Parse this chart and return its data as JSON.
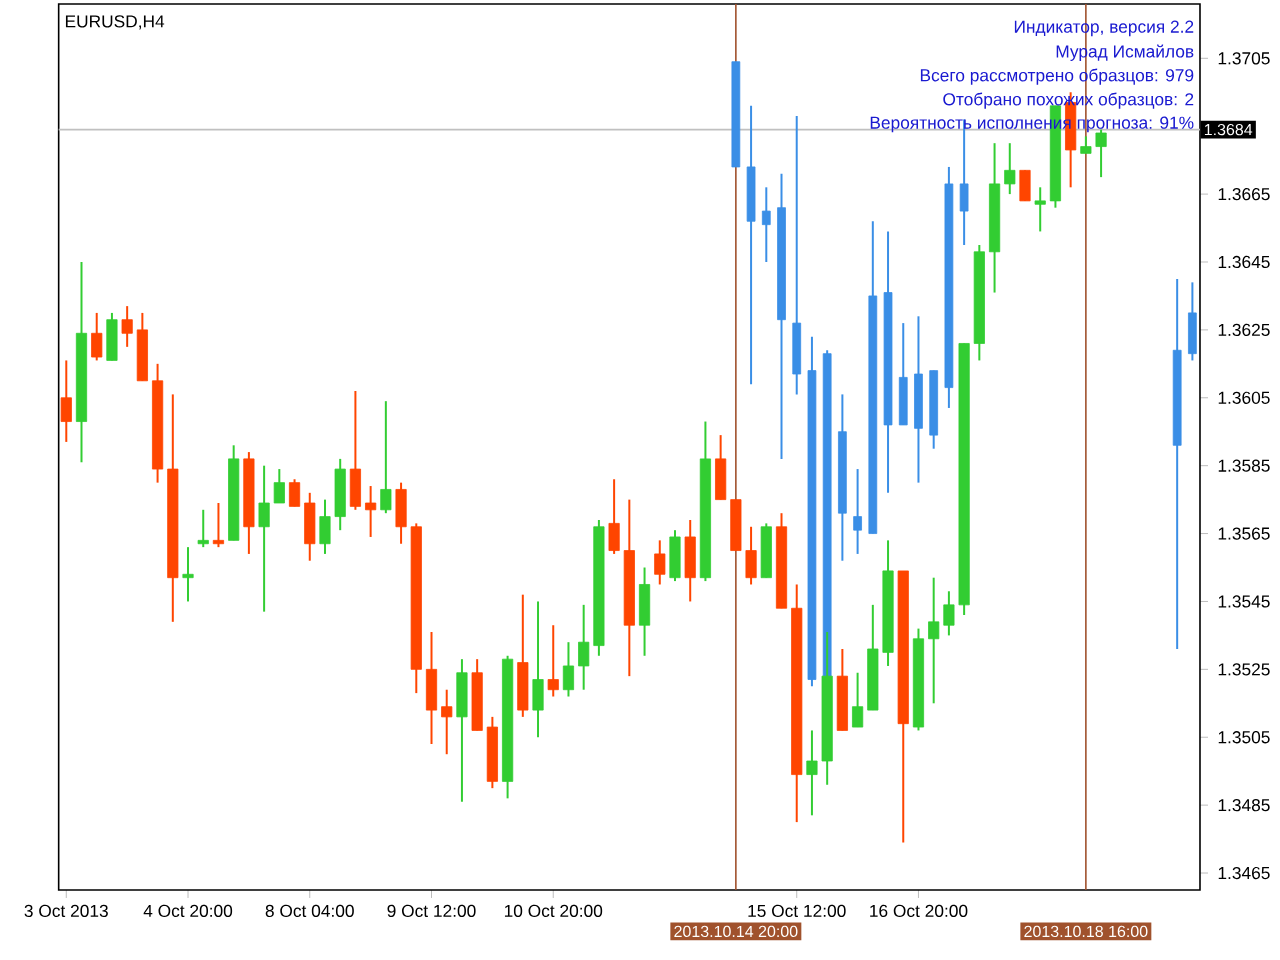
{
  "chart_data": {
    "type": "candlestick",
    "title": "EURUSD,H4",
    "annotations": [
      "Индикатор, версия 2.2",
      "Мурад Исмайлов",
      "Всего рассмотрено образцов: 979",
      "Отобрано похожих образцов: 2",
      "Вероятность исполнения прогноза: 91%"
    ],
    "categories": [
      "3 Oct 2013",
      null,
      null,
      null,
      null,
      null,
      null,
      null,
      "4 Oct 20:00",
      null,
      null,
      null,
      null,
      null,
      null,
      null,
      "8 Oct 04:00",
      null,
      null,
      null,
      null,
      null,
      null,
      null,
      "9 Oct 12:00",
      null,
      null,
      null,
      null,
      null,
      null,
      null,
      "10 Oct 20:00",
      null,
      null,
      null,
      null,
      null,
      null,
      null,
      null,
      null,
      null,
      null,
      "2013.10.14 20:00",
      null,
      null,
      null,
      "15 Oct 12:00",
      null,
      null,
      null,
      null,
      null,
      null,
      null,
      "16 Oct 20:00",
      null,
      null,
      null,
      null,
      null,
      null,
      null,
      null,
      null,
      null,
      "2013.10.18 16:00",
      null,
      null,
      null,
      null,
      null,
      null,
      null
    ],
    "series": [
      {
        "ohlc": [
          [
            1.3605,
            1.3616,
            1.3592,
            1.3598
          ],
          [
            1.3598,
            1.3645,
            1.3586,
            1.3624
          ],
          [
            1.3624,
            1.363,
            1.3616,
            1.3617
          ],
          [
            1.3616,
            1.363,
            1.3616,
            1.3628
          ],
          [
            1.3628,
            1.3632,
            1.362,
            1.3624
          ],
          [
            1.3625,
            1.363,
            1.361,
            1.361
          ],
          [
            1.361,
            1.3615,
            1.358,
            1.3584
          ],
          [
            1.3584,
            1.3606,
            1.3539,
            1.3552
          ],
          [
            1.3552,
            1.3561,
            1.3545,
            1.3553
          ],
          [
            1.3562,
            1.3572,
            1.3561,
            1.3563
          ],
          [
            1.3563,
            1.3574,
            1.3561,
            1.3562
          ],
          [
            1.3563,
            1.3591,
            1.3563,
            1.3587
          ],
          [
            1.3587,
            1.3589,
            1.3559,
            1.3567
          ],
          [
            1.3567,
            1.3585,
            1.3542,
            1.3574
          ],
          [
            1.3574,
            1.3584,
            1.3574,
            1.358
          ],
          [
            1.358,
            1.3581,
            1.3573,
            1.3573
          ],
          [
            1.3574,
            1.3577,
            1.3557,
            1.3562
          ],
          [
            1.3562,
            1.3575,
            1.3559,
            1.357
          ],
          [
            1.357,
            1.3587,
            1.3566,
            1.3584
          ],
          [
            1.3584,
            1.3607,
            1.3572,
            1.3573
          ],
          [
            1.3574,
            1.3579,
            1.3564,
            1.3572
          ],
          [
            1.3572,
            1.3604,
            1.3571,
            1.3578
          ],
          [
            1.3578,
            1.358,
            1.3562,
            1.3567
          ],
          [
            1.3567,
            1.3568,
            1.3518,
            1.3525
          ],
          [
            1.3525,
            1.3536,
            1.3503,
            1.3513
          ],
          [
            1.3514,
            1.3519,
            1.35,
            1.3511
          ],
          [
            1.3511,
            1.3528,
            1.3486,
            1.3524
          ],
          [
            1.3524,
            1.3528,
            1.3507,
            1.3507
          ],
          [
            1.3508,
            1.3511,
            1.349,
            1.3492
          ],
          [
            1.3492,
            1.3529,
            1.3487,
            1.3528
          ],
          [
            1.3527,
            1.3547,
            1.3511,
            1.3513
          ],
          [
            1.3513,
            1.3545,
            1.3505,
            1.3522
          ],
          [
            1.3522,
            1.3538,
            1.3517,
            1.3519
          ],
          [
            1.3519,
            1.3533,
            1.3517,
            1.3526
          ],
          [
            1.3526,
            1.3544,
            1.3519,
            1.3533
          ],
          [
            1.3532,
            1.3569,
            1.3529,
            1.3567
          ],
          [
            1.3568,
            1.3581,
            1.3559,
            1.356
          ],
          [
            1.356,
            1.3575,
            1.3523,
            1.3538
          ],
          [
            1.3538,
            1.3555,
            1.3529,
            1.355
          ],
          [
            1.3559,
            1.3563,
            1.355,
            1.3553
          ],
          [
            1.3552,
            1.3566,
            1.3551,
            1.3564
          ],
          [
            1.3564,
            1.3569,
            1.3545,
            1.3552
          ],
          [
            1.3552,
            1.3598,
            1.3551,
            1.3587
          ],
          [
            1.3587,
            1.3594,
            1.3575,
            1.3575
          ],
          [
            1.3575,
            1.3575,
            1.356,
            1.356
          ],
          [
            1.356,
            1.3567,
            1.355,
            1.3552
          ],
          [
            1.3552,
            1.3568,
            1.3552,
            1.3567
          ],
          [
            1.3567,
            1.3571,
            1.3543,
            1.3543
          ],
          [
            1.3543,
            1.355,
            1.348,
            1.3494
          ],
          [
            1.3494,
            1.3507,
            1.3482,
            1.3498
          ],
          [
            1.3498,
            1.3536,
            1.3491,
            1.3523
          ],
          [
            1.3523,
            1.3531,
            1.3507,
            1.3507
          ],
          [
            1.3508,
            1.3524,
            1.3508,
            1.3514
          ],
          [
            1.3513,
            1.3544,
            1.3513,
            1.3531
          ],
          [
            1.353,
            1.3563,
            1.3526,
            1.3554
          ],
          [
            1.3554,
            1.3554,
            1.3474,
            1.3509
          ],
          [
            1.3508,
            1.3537,
            1.3507,
            1.3534
          ],
          [
            1.3534,
            1.3552,
            1.3515,
            1.3539
          ],
          [
            1.3538,
            1.3548,
            1.3535,
            1.3544
          ],
          [
            1.3544,
            1.3621,
            1.3541,
            1.3621
          ],
          [
            1.3621,
            1.365,
            1.3616,
            1.3648
          ],
          [
            1.3648,
            1.368,
            1.3636,
            1.3668
          ],
          [
            1.3668,
            1.368,
            1.3665,
            1.3672
          ],
          [
            1.3672,
            1.3672,
            1.3663,
            1.3663
          ],
          [
            1.3662,
            1.3667,
            1.3654,
            1.3663
          ],
          [
            1.3663,
            1.3691,
            1.3661,
            1.3691
          ],
          [
            1.3692,
            1.3695,
            1.3667,
            1.3678
          ],
          [
            1.3677,
            1.3682,
            1.3677,
            1.3679
          ],
          [
            1.3679,
            1.3684,
            1.367,
            1.3683
          ],
          null,
          null,
          null,
          null,
          null,
          null
        ],
        "colors": [
          "#ff4500",
          "#32cd32",
          "#ff4500",
          "#32cd32",
          "#ff4500",
          "#ff4500",
          "#ff4500",
          "#ff4500",
          "#32cd32",
          "#32cd32",
          "#ff4500",
          "#32cd32",
          "#ff4500",
          "#32cd32",
          "#32cd32",
          "#ff4500",
          "#ff4500",
          "#32cd32",
          "#32cd32",
          "#ff4500",
          "#ff4500",
          "#32cd32",
          "#ff4500",
          "#ff4500",
          "#ff4500",
          "#ff4500",
          "#32cd32",
          "#ff4500",
          "#ff4500",
          "#32cd32",
          "#ff4500",
          "#32cd32",
          "#ff4500",
          "#32cd32",
          "#32cd32",
          "#32cd32",
          "#ff4500",
          "#ff4500",
          "#32cd32",
          "#ff4500",
          "#32cd32",
          "#ff4500",
          "#32cd32",
          "#ff4500",
          "#ff4500",
          "#ff4500",
          "#32cd32",
          "#ff4500",
          "#ff4500",
          "#32cd32",
          "#32cd32",
          "#ff4500",
          "#32cd32",
          "#32cd32",
          "#32cd32",
          "#ff4500",
          "#32cd32",
          "#32cd32",
          "#32cd32",
          "#32cd32",
          "#32cd32",
          "#32cd32",
          "#32cd32",
          "#ff4500",
          "#32cd32",
          "#32cd32",
          "#ff4500",
          "#32cd32",
          "#32cd32",
          null,
          null,
          null,
          null,
          null,
          null
        ]
      },
      {
        "color": "#3a8ee6",
        "ohlc": [
          null,
          null,
          null,
          null,
          null,
          null,
          null,
          null,
          null,
          null,
          null,
          null,
          null,
          null,
          null,
          null,
          null,
          null,
          null,
          null,
          null,
          null,
          null,
          null,
          null,
          null,
          null,
          null,
          null,
          null,
          null,
          null,
          null,
          null,
          null,
          null,
          null,
          null,
          null,
          null,
          null,
          null,
          null,
          null,
          [
            1.3704,
            1.3704,
            1.3673,
            1.3673
          ],
          [
            1.3673,
            1.3691,
            1.3609,
            1.3657
          ],
          [
            1.366,
            1.3667,
            1.3645,
            1.3656
          ],
          [
            1.3661,
            1.3671,
            1.3587,
            1.3628
          ],
          [
            1.3627,
            1.3688,
            1.3606,
            1.3612
          ],
          [
            1.3613,
            1.3623,
            1.352,
            1.3522
          ],
          [
            1.3618,
            1.3619,
            1.3523,
            1.3523
          ],
          [
            1.3595,
            1.3606,
            1.3557,
            1.3571
          ],
          [
            1.357,
            1.3584,
            1.3559,
            1.3566
          ],
          [
            1.3635,
            1.3657,
            1.3565,
            1.3565
          ],
          [
            1.3636,
            1.3654,
            1.3577,
            1.3597
          ],
          [
            1.3611,
            1.3627,
            1.3597,
            1.3597
          ],
          [
            1.3612,
            1.3629,
            1.358,
            1.3596
          ],
          [
            1.3613,
            1.3613,
            1.359,
            1.3594
          ],
          [
            1.3668,
            1.3673,
            1.3602,
            1.3608
          ],
          [
            1.3668,
            1.3687,
            1.365,
            1.366
          ],
          null,
          null,
          null,
          null,
          null,
          null,
          null,
          null,
          null,
          null,
          null,
          null,
          null,
          [
            1.3619,
            1.364,
            1.3531,
            1.3591
          ],
          [
            1.363,
            1.3639,
            1.3616,
            1.3618
          ]
        ]
      }
    ],
    "ylim": [
      1.346,
      1.3721
    ],
    "yticks": [
      1.3705,
      1.3665,
      1.3645,
      1.3625,
      1.3605,
      1.3585,
      1.3565,
      1.3545,
      1.3525,
      1.3505,
      1.3485,
      1.3465
    ],
    "ref_lines": [
      {
        "axis": "y",
        "value": 1.3684,
        "label": "1.3684",
        "color": "#c0c0c0"
      },
      {
        "axis": "x",
        "value": "2013.10.14 20:00",
        "color": "#a0522d"
      },
      {
        "axis": "x",
        "value": "2013.10.18 16:00",
        "color": "#a0522d"
      }
    ]
  }
}
